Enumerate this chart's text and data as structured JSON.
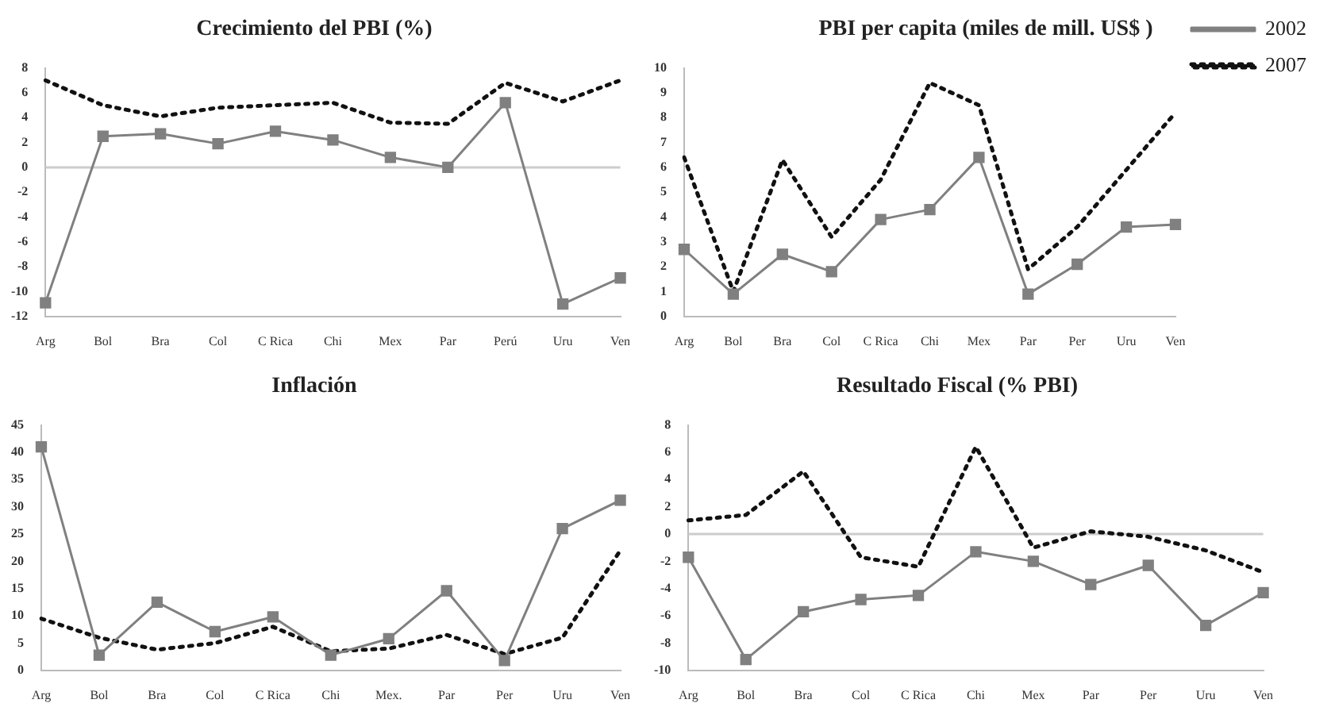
{
  "chart_data": [
    {
      "type": "line",
      "title": "Crecimiento del PBI (%)",
      "categories": [
        "Arg",
        "Bol",
        "Bra",
        "Col",
        "C Rica",
        "Chi",
        "Mex",
        "Par",
        "Perú",
        "Uru",
        "Ven"
      ],
      "series": [
        {
          "color": "#808080",
          "marker": "square",
          "line_style": "solid",
          "values": [
            -10.9,
            2.5,
            2.7,
            1.9,
            2.9,
            2.2,
            0.8,
            0,
            5.2,
            -11,
            -8.9
          ]
        },
        {
          "color": "#111111",
          "marker": "none",
          "line_style": "dotted",
          "values": [
            7.0,
            5.0,
            4.1,
            4.8,
            5.0,
            5.2,
            3.6,
            3.5,
            6.8,
            5.3,
            7.0
          ]
        }
      ],
      "ylim": [
        -12,
        8
      ],
      "yticks": [
        -12,
        -10,
        -8,
        -6,
        -4,
        -2,
        0,
        2,
        4,
        6,
        8
      ],
      "ref_lines": [
        {
          "axis": "y",
          "value": 0,
          "color": "#cccccc"
        }
      ],
      "legend": false
    },
    {
      "type": "line",
      "title": "PBI per capita (miles de mill. US$ )",
      "categories": [
        "Arg",
        "Bol",
        "Bra",
        "Col",
        "C Rica",
        "Chi",
        "Mex",
        "Par",
        "Per",
        "Uru",
        "Ven"
      ],
      "series": [
        {
          "name": "2002",
          "color": "#808080",
          "marker": "square",
          "line_style": "solid",
          "values": [
            2.7,
            0.9,
            2.5,
            1.8,
            3.9,
            4.3,
            6.4,
            0.9,
            2.1,
            3.6,
            3.7
          ]
        },
        {
          "name": "2007",
          "color": "#111111",
          "marker": "none",
          "line_style": "dotted",
          "values": [
            6.4,
            1.0,
            6.3,
            3.2,
            5.5,
            9.4,
            8.5,
            1.9,
            3.6,
            5.9,
            8.2
          ]
        }
      ],
      "ylim": [
        0,
        10
      ],
      "yticks": [
        0,
        1,
        2,
        3,
        4,
        5,
        6,
        7,
        8,
        9,
        10
      ],
      "legend": "top right"
    },
    {
      "type": "line",
      "title": "Inflación",
      "categories": [
        "Arg",
        "Bol",
        "Bra",
        "Col",
        "C Rica",
        "Chi",
        "Mex.",
        "Par",
        "Per",
        "Uru",
        "Ven"
      ],
      "series": [
        {
          "color": "#808080",
          "marker": "square",
          "line_style": "solid",
          "values": [
            41,
            2.8,
            12.5,
            7.1,
            9.8,
            2.8,
            5.8,
            14.6,
            1.8,
            26,
            31.2
          ]
        },
        {
          "color": "#111111",
          "marker": "none",
          "line_style": "dotted",
          "values": [
            9.5,
            6,
            3.8,
            5,
            8,
            3.5,
            4,
            6.5,
            3,
            6,
            22
          ]
        }
      ],
      "ylim": [
        0,
        45
      ],
      "yticks": [
        0,
        5,
        10,
        15,
        20,
        25,
        30,
        35,
        40,
        45
      ],
      "legend": false
    },
    {
      "type": "line",
      "title": "Resultado Fiscal (% PBI)",
      "categories": [
        "Arg",
        "Bol",
        "Bra",
        "Col",
        "C Rica",
        "Chi",
        "Mex",
        "Par",
        "Per",
        "Uru",
        "Ven"
      ],
      "series": [
        {
          "color": "#808080",
          "marker": "square",
          "line_style": "solid",
          "values": [
            -1.7,
            -9.2,
            -5.7,
            -4.8,
            -4.5,
            -1.3,
            -2.0,
            -3.7,
            -2.3,
            -6.7,
            -4.3
          ]
        },
        {
          "color": "#111111",
          "marker": "none",
          "line_style": "dotted",
          "values": [
            1.0,
            1.4,
            4.6,
            -1.7,
            -2.4,
            6.4,
            -1.0,
            0.2,
            -0.2,
            -1.2,
            -2.8
          ]
        }
      ],
      "ylim": [
        -10,
        8
      ],
      "yticks": [
        -10,
        -8,
        -6,
        -4,
        -2,
        0,
        2,
        4,
        6,
        8
      ],
      "ref_lines": [
        {
          "axis": "y",
          "value": 0,
          "color": "#cccccc"
        }
      ],
      "legend": false
    }
  ]
}
